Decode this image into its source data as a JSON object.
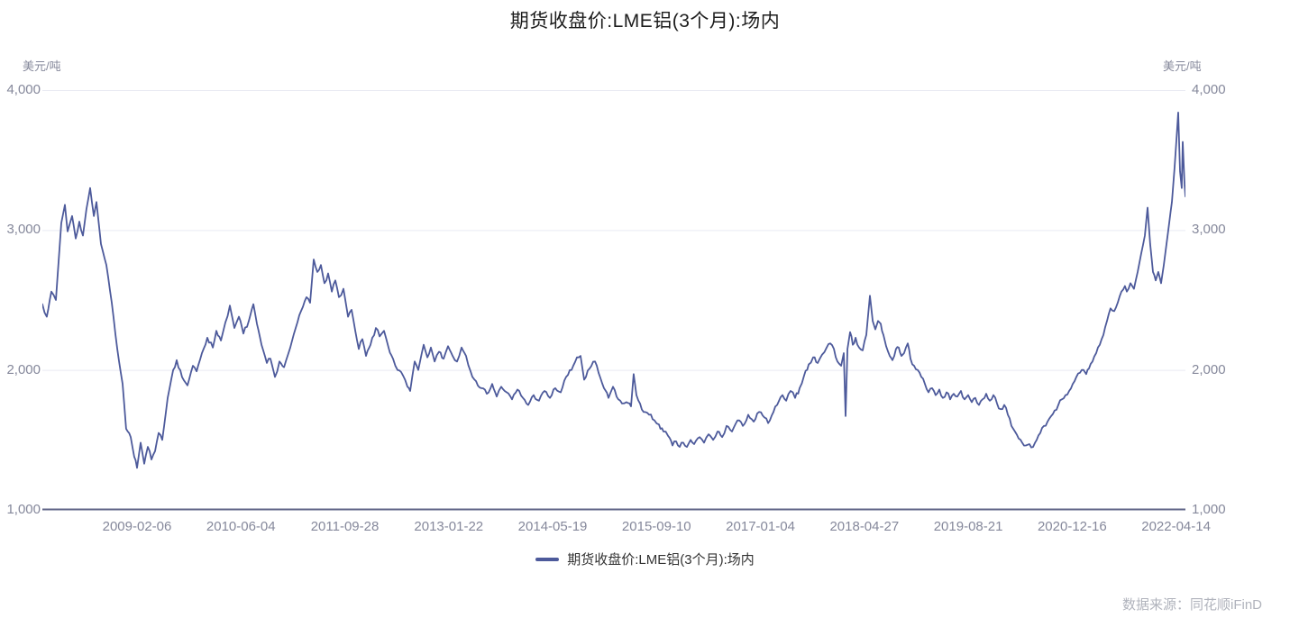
{
  "source_note": "数据来源：同花顺iFinD",
  "chart_data": {
    "type": "line",
    "title": "期货收盘价:LME铝(3个月):场内",
    "unit_left": "美元/吨",
    "unit_right": "美元/吨",
    "ylabel": "美元/吨",
    "ylim": [
      1000,
      4000
    ],
    "grid": "horizontal",
    "legend_position": "bottom",
    "y_ticks": [
      {
        "label": "4,000",
        "value": 4000
      },
      {
        "label": "3,000",
        "value": 3000
      },
      {
        "label": "2,000",
        "value": 2000
      },
      {
        "label": "1,000",
        "value": 1000
      }
    ],
    "x_tick_labels": [
      "2009-02-06",
      "2010-06-04",
      "2011-09-28",
      "2013-01-22",
      "2014-05-19",
      "2015-09-10",
      "2017-01-04",
      "2018-04-27",
      "2019-08-21",
      "2020-12-16",
      "2022-04-14"
    ],
    "legend": [
      {
        "name": "期货收盘价:LME铝(3个月):场内",
        "color": "#4d5a9b"
      }
    ],
    "noise_amplitude": 16,
    "layout": {
      "first_tick_frac": 0.0828,
      "tick_spacing_frac": 0.0909,
      "colors": {
        "line": "#4d5a9b",
        "grid": "#e9eaf3",
        "axis": "#5f6487",
        "tick_label": "#85889b",
        "title": "#1c1c1c",
        "legend_text": "#333333",
        "source": "#b0b3bc"
      }
    },
    "series": [
      {
        "name": "期货收盘价:LME铝(3个月):场内",
        "color": "#4d5a9b",
        "keypoints": [
          [
            0.0,
            2470
          ],
          [
            0.0039,
            2380
          ],
          [
            0.0079,
            2560
          ],
          [
            0.0118,
            2500
          ],
          [
            0.0166,
            3050
          ],
          [
            0.0197,
            3180
          ],
          [
            0.0221,
            2990
          ],
          [
            0.026,
            3100
          ],
          [
            0.0292,
            2940
          ],
          [
            0.0323,
            3060
          ],
          [
            0.0355,
            2960
          ],
          [
            0.0386,
            3150
          ],
          [
            0.0418,
            3300
          ],
          [
            0.045,
            3100
          ],
          [
            0.0473,
            3200
          ],
          [
            0.0513,
            2900
          ],
          [
            0.056,
            2750
          ],
          [
            0.0607,
            2480
          ],
          [
            0.0655,
            2150
          ],
          [
            0.0702,
            1900
          ],
          [
            0.0733,
            1580
          ],
          [
            0.0773,
            1520
          ],
          [
            0.0804,
            1380
          ],
          [
            0.0828,
            1300
          ],
          [
            0.086,
            1480
          ],
          [
            0.0891,
            1330
          ],
          [
            0.0923,
            1450
          ],
          [
            0.0954,
            1360
          ],
          [
            0.0986,
            1420
          ],
          [
            0.1017,
            1550
          ],
          [
            0.1049,
            1500
          ],
          [
            0.1096,
            1800
          ],
          [
            0.1144,
            2000
          ],
          [
            0.1175,
            2070
          ],
          [
            0.1222,
            1950
          ],
          [
            0.127,
            1890
          ],
          [
            0.1317,
            2030
          ],
          [
            0.1349,
            1990
          ],
          [
            0.1396,
            2120
          ],
          [
            0.1443,
            2230
          ],
          [
            0.1491,
            2160
          ],
          [
            0.1522,
            2280
          ],
          [
            0.1562,
            2210
          ],
          [
            0.1601,
            2340
          ],
          [
            0.164,
            2460
          ],
          [
            0.168,
            2300
          ],
          [
            0.1719,
            2380
          ],
          [
            0.1759,
            2260
          ],
          [
            0.1806,
            2350
          ],
          [
            0.1846,
            2470
          ],
          [
            0.1877,
            2330
          ],
          [
            0.1917,
            2180
          ],
          [
            0.1964,
            2050
          ],
          [
            0.1995,
            2080
          ],
          [
            0.2035,
            1950
          ],
          [
            0.2074,
            2060
          ],
          [
            0.2114,
            2020
          ],
          [
            0.2169,
            2160
          ],
          [
            0.2216,
            2300
          ],
          [
            0.2263,
            2420
          ],
          [
            0.2311,
            2520
          ],
          [
            0.2342,
            2480
          ],
          [
            0.2374,
            2790
          ],
          [
            0.2405,
            2700
          ],
          [
            0.2437,
            2750
          ],
          [
            0.2468,
            2620
          ],
          [
            0.25,
            2690
          ],
          [
            0.2532,
            2560
          ],
          [
            0.2563,
            2640
          ],
          [
            0.2595,
            2520
          ],
          [
            0.2634,
            2580
          ],
          [
            0.2674,
            2380
          ],
          [
            0.2705,
            2430
          ],
          [
            0.2737,
            2280
          ],
          [
            0.2768,
            2150
          ],
          [
            0.28,
            2220
          ],
          [
            0.2831,
            2100
          ],
          [
            0.2871,
            2180
          ],
          [
            0.2918,
            2300
          ],
          [
            0.295,
            2240
          ],
          [
            0.2989,
            2280
          ],
          [
            0.3028,
            2160
          ],
          [
            0.3068,
            2080
          ],
          [
            0.3107,
            2000
          ],
          [
            0.3155,
            1960
          ],
          [
            0.3194,
            1880
          ],
          [
            0.3218,
            1850
          ],
          [
            0.3257,
            2060
          ],
          [
            0.3289,
            2000
          ],
          [
            0.3336,
            2180
          ],
          [
            0.3368,
            2090
          ],
          [
            0.3399,
            2160
          ],
          [
            0.3431,
            2060
          ],
          [
            0.347,
            2130
          ],
          [
            0.351,
            2080
          ],
          [
            0.3549,
            2170
          ],
          [
            0.3589,
            2100
          ],
          [
            0.3628,
            2060
          ],
          [
            0.3667,
            2160
          ],
          [
            0.3707,
            2100
          ],
          [
            0.3746,
            1990
          ],
          [
            0.3794,
            1920
          ],
          [
            0.3841,
            1870
          ],
          [
            0.3888,
            1830
          ],
          [
            0.3935,
            1900
          ],
          [
            0.3975,
            1810
          ],
          [
            0.4014,
            1880
          ],
          [
            0.4062,
            1840
          ],
          [
            0.4109,
            1790
          ],
          [
            0.4156,
            1860
          ],
          [
            0.4204,
            1800
          ],
          [
            0.4251,
            1750
          ],
          [
            0.4298,
            1820
          ],
          [
            0.4345,
            1780
          ],
          [
            0.4393,
            1850
          ],
          [
            0.444,
            1800
          ],
          [
            0.4487,
            1870
          ],
          [
            0.4535,
            1840
          ],
          [
            0.4582,
            1950
          ],
          [
            0.4629,
            2000
          ],
          [
            0.4677,
            2090
          ],
          [
            0.4708,
            2100
          ],
          [
            0.474,
            1930
          ],
          [
            0.4787,
            2010
          ],
          [
            0.4835,
            2060
          ],
          [
            0.4866,
            1980
          ],
          [
            0.4913,
            1870
          ],
          [
            0.4953,
            1800
          ],
          [
            0.4992,
            1880
          ],
          [
            0.5039,
            1790
          ],
          [
            0.5071,
            1760
          ],
          [
            0.511,
            1770
          ],
          [
            0.515,
            1740
          ],
          [
            0.5173,
            1970
          ],
          [
            0.5197,
            1820
          ],
          [
            0.5229,
            1760
          ],
          [
            0.526,
            1700
          ],
          [
            0.5308,
            1680
          ],
          [
            0.5355,
            1640
          ],
          [
            0.5394,
            1610
          ],
          [
            0.5434,
            1560
          ],
          [
            0.5473,
            1530
          ],
          [
            0.5513,
            1460
          ],
          [
            0.5544,
            1490
          ],
          [
            0.5576,
            1450
          ],
          [
            0.5607,
            1480
          ],
          [
            0.5639,
            1450
          ],
          [
            0.5671,
            1500
          ],
          [
            0.5702,
            1470
          ],
          [
            0.575,
            1520
          ],
          [
            0.5789,
            1480
          ],
          [
            0.5828,
            1540
          ],
          [
            0.5868,
            1500
          ],
          [
            0.5907,
            1560
          ],
          [
            0.5947,
            1520
          ],
          [
            0.5986,
            1600
          ],
          [
            0.6033,
            1560
          ],
          [
            0.6081,
            1640
          ],
          [
            0.6128,
            1600
          ],
          [
            0.6175,
            1680
          ],
          [
            0.6223,
            1630
          ],
          [
            0.627,
            1700
          ],
          [
            0.6318,
            1660
          ],
          [
            0.6349,
            1620
          ],
          [
            0.6396,
            1700
          ],
          [
            0.6428,
            1750
          ],
          [
            0.6475,
            1820
          ],
          [
            0.6507,
            1780
          ],
          [
            0.6546,
            1850
          ],
          [
            0.6585,
            1800
          ],
          [
            0.6625,
            1870
          ],
          [
            0.6664,
            1960
          ],
          [
            0.6704,
            2040
          ],
          [
            0.6743,
            2090
          ],
          [
            0.6783,
            2050
          ],
          [
            0.6822,
            2110
          ],
          [
            0.6861,
            2160
          ],
          [
            0.6893,
            2190
          ],
          [
            0.6925,
            2150
          ],
          [
            0.6956,
            2060
          ],
          [
            0.6988,
            2030
          ],
          [
            0.7011,
            2120
          ],
          [
            0.7027,
            1670
          ],
          [
            0.7043,
            2150
          ],
          [
            0.7066,
            2270
          ],
          [
            0.709,
            2180
          ],
          [
            0.7114,
            2230
          ],
          [
            0.7145,
            2160
          ],
          [
            0.7177,
            2140
          ],
          [
            0.7208,
            2250
          ],
          [
            0.724,
            2530
          ],
          [
            0.7264,
            2350
          ],
          [
            0.7287,
            2290
          ],
          [
            0.7311,
            2350
          ],
          [
            0.7334,
            2330
          ],
          [
            0.7358,
            2250
          ],
          [
            0.7382,
            2170
          ],
          [
            0.7413,
            2100
          ],
          [
            0.7437,
            2070
          ],
          [
            0.7468,
            2150
          ],
          [
            0.7492,
            2160
          ],
          [
            0.7516,
            2100
          ],
          [
            0.7539,
            2120
          ],
          [
            0.7571,
            2190
          ],
          [
            0.7595,
            2080
          ],
          [
            0.7626,
            2030
          ],
          [
            0.7658,
            2000
          ],
          [
            0.7689,
            1950
          ],
          [
            0.7721,
            1900
          ],
          [
            0.7752,
            1840
          ],
          [
            0.7784,
            1870
          ],
          [
            0.7815,
            1820
          ],
          [
            0.7847,
            1860
          ],
          [
            0.7878,
            1800
          ],
          [
            0.791,
            1840
          ],
          [
            0.7942,
            1790
          ],
          [
            0.7973,
            1830
          ],
          [
            0.8005,
            1810
          ],
          [
            0.8036,
            1850
          ],
          [
            0.8068,
            1790
          ],
          [
            0.8099,
            1820
          ],
          [
            0.8131,
            1770
          ],
          [
            0.8162,
            1800
          ],
          [
            0.8194,
            1750
          ],
          [
            0.8225,
            1790
          ],
          [
            0.8257,
            1830
          ],
          [
            0.8289,
            1780
          ],
          [
            0.832,
            1820
          ],
          [
            0.8352,
            1760
          ],
          [
            0.8383,
            1720
          ],
          [
            0.8415,
            1750
          ],
          [
            0.8446,
            1680
          ],
          [
            0.8478,
            1600
          ],
          [
            0.8509,
            1560
          ],
          [
            0.8541,
            1510
          ],
          [
            0.8572,
            1480
          ],
          [
            0.8604,
            1460
          ],
          [
            0.8636,
            1470
          ],
          [
            0.8667,
            1450
          ],
          [
            0.8699,
            1500
          ],
          [
            0.873,
            1550
          ],
          [
            0.8762,
            1600
          ],
          [
            0.8793,
            1630
          ],
          [
            0.8825,
            1670
          ],
          [
            0.8856,
            1710
          ],
          [
            0.8888,
            1750
          ],
          [
            0.8919,
            1790
          ],
          [
            0.8951,
            1820
          ],
          [
            0.8983,
            1850
          ],
          [
            0.9014,
            1900
          ],
          [
            0.9046,
            1950
          ],
          [
            0.9077,
            1980
          ],
          [
            0.9109,
            2000
          ],
          [
            0.9132,
            1970
          ],
          [
            0.9156,
            2010
          ],
          [
            0.9187,
            2060
          ],
          [
            0.9219,
            2120
          ],
          [
            0.9251,
            2180
          ],
          [
            0.9282,
            2250
          ],
          [
            0.9314,
            2350
          ],
          [
            0.9345,
            2440
          ],
          [
            0.9377,
            2420
          ],
          [
            0.9408,
            2480
          ],
          [
            0.944,
            2560
          ],
          [
            0.9471,
            2600
          ],
          [
            0.9487,
            2560
          ],
          [
            0.9519,
            2620
          ],
          [
            0.955,
            2580
          ],
          [
            0.9582,
            2700
          ],
          [
            0.9613,
            2830
          ],
          [
            0.9645,
            2960
          ],
          [
            0.9669,
            3160
          ],
          [
            0.9692,
            2900
          ],
          [
            0.9716,
            2700
          ],
          [
            0.974,
            2640
          ],
          [
            0.9763,
            2700
          ],
          [
            0.9787,
            2620
          ],
          [
            0.9811,
            2750
          ],
          [
            0.9834,
            2900
          ],
          [
            0.9858,
            3050
          ],
          [
            0.9882,
            3200
          ],
          [
            0.9905,
            3450
          ],
          [
            0.9937,
            3840
          ],
          [
            0.9953,
            3420
          ],
          [
            0.9968,
            3300
          ],
          [
            0.9976,
            3630
          ],
          [
            0.9992,
            3330
          ],
          [
            1.0,
            3240
          ]
        ]
      }
    ]
  }
}
